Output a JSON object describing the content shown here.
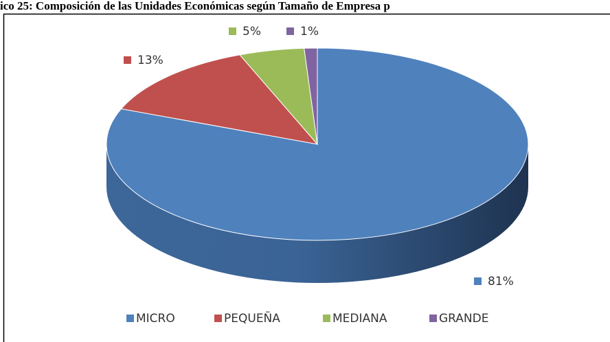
{
  "chart_data": {
    "type": "pie3d",
    "title": "ico 25: Composición de las Unidades Económicas según Tamaño de Empresa p",
    "categories": [
      "MICRO",
      "PEQUEÑA",
      "MEDIANA",
      "GRANDE"
    ],
    "values": [
      81,
      13,
      5,
      1
    ],
    "value_labels": [
      "81%",
      "13%",
      "5%",
      "1%"
    ],
    "colors": [
      "#4f81bd",
      "#c0504d",
      "#9bbb59",
      "#8064a2"
    ],
    "legend": "bottom"
  }
}
